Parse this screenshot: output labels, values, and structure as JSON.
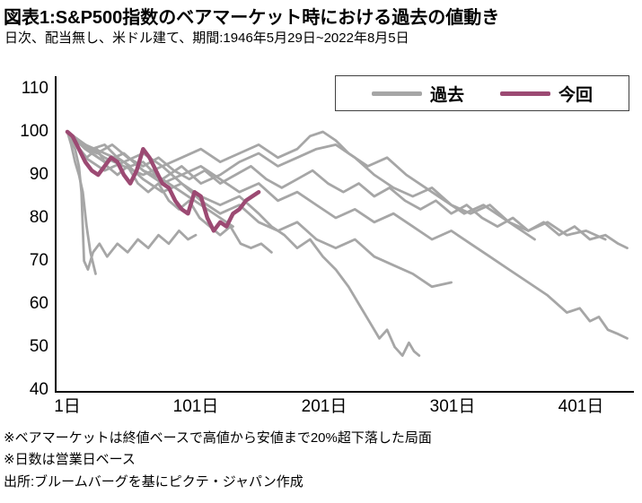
{
  "chart_data": {
    "type": "line",
    "title": "図表1:S&P500指数のベアマーケット時における過去の値動き",
    "subtitle": "日次、配当無し、米ドル建て、期間:1946年5月29日~2022年8月5日",
    "x_axis": {
      "tick_labels": [
        "1日",
        "101日",
        "201日",
        "301日",
        "401日"
      ],
      "tick_values": [
        1,
        101,
        201,
        301,
        401
      ],
      "range": [
        1,
        440
      ],
      "unit": "営業日"
    },
    "y_axis": {
      "ticks": [
        110,
        100,
        90,
        80,
        70,
        60,
        50,
        40
      ],
      "range": [
        40,
        113
      ]
    },
    "grid": false,
    "legend_position": "top-right",
    "legend": [
      {
        "label": "過去",
        "color": "#a6a6a6"
      },
      {
        "label": "今回",
        "color": "#9c4a73"
      }
    ],
    "series": [
      {
        "legend": "過去",
        "x": [
          1,
          15,
          30,
          45,
          60,
          75,
          90,
          105,
          120,
          135,
          150,
          165,
          180,
          195,
          210,
          225,
          240,
          255,
          270,
          285,
          300,
          315,
          330,
          345,
          360,
          375,
          390,
          400,
          408,
          415,
          422,
          430,
          437
        ],
        "y": [
          100,
          96,
          93,
          95,
          91,
          88,
          90,
          92,
          89,
          86,
          88,
          84,
          86,
          83,
          80,
          82,
          79,
          81,
          78,
          75,
          77,
          74,
          71,
          68,
          65,
          62,
          58,
          59,
          56,
          57,
          54,
          53,
          52
        ]
      },
      {
        "legend": "過去",
        "x": [
          1,
          12,
          24,
          36,
          48,
          60,
          72,
          84,
          96,
          108,
          120,
          132,
          144,
          156,
          168,
          180,
          192,
          204,
          216,
          228,
          240,
          252,
          264,
          276,
          288,
          300,
          312,
          324,
          336,
          348,
          360,
          372,
          384,
          396,
          408,
          420,
          430,
          437
        ],
        "y": [
          100,
          97,
          95,
          97,
          94,
          92,
          94,
          91,
          89,
          91,
          88,
          90,
          92,
          89,
          87,
          89,
          91,
          88,
          86,
          88,
          85,
          87,
          84,
          82,
          84,
          81,
          83,
          80,
          78,
          80,
          77,
          79,
          76,
          78,
          75,
          76,
          74,
          73
        ]
      },
      {
        "legend": "過去",
        "x": [
          1,
          15,
          30,
          45,
          60,
          75,
          90,
          105,
          120,
          135,
          150,
          165,
          180,
          195,
          210,
          225,
          240,
          255,
          270,
          285,
          300,
          315,
          330,
          345,
          360,
          375,
          390,
          405,
          420
        ],
        "y": [
          100,
          96,
          93,
          95,
          91,
          89,
          92,
          88,
          90,
          93,
          95,
          92,
          94,
          96,
          97,
          94,
          90,
          87,
          85,
          87,
          83,
          81,
          83,
          79,
          77,
          79,
          76,
          77,
          75
        ]
      },
      {
        "legend": "過去",
        "x": [
          1,
          15,
          30,
          45,
          60,
          75,
          90,
          105,
          120,
          135,
          150,
          160,
          170,
          180,
          190,
          200,
          210,
          220,
          228,
          236,
          244,
          250,
          256,
          262,
          267,
          271,
          275
        ],
        "y": [
          100,
          97,
          94,
          92,
          90,
          92,
          88,
          85,
          83,
          85,
          81,
          78,
          76,
          73,
          75,
          71,
          68,
          64,
          60,
          56,
          52,
          54,
          50,
          48,
          51,
          49,
          48
        ]
      },
      {
        "legend": "過去",
        "x": [
          1,
          15,
          30,
          45,
          60,
          75,
          90,
          105,
          120,
          135,
          150,
          165,
          180,
          195,
          210,
          225,
          240,
          255,
          270,
          285,
          300
        ],
        "y": [
          100,
          94,
          91,
          93,
          89,
          86,
          88,
          84,
          81,
          83,
          79,
          77,
          79,
          75,
          73,
          75,
          71,
          69,
          67,
          64,
          65
        ]
      },
      {
        "legend": "過去",
        "x": [
          1,
          4,
          7,
          10,
          13,
          16,
          19,
          23
        ],
        "y": [
          100,
          97,
          93,
          90,
          86,
          78,
          72,
          67
        ]
      },
      {
        "legend": "過去",
        "x": [
          1,
          4,
          7,
          10,
          12,
          14,
          17,
          21,
          26,
          32,
          40,
          48,
          56,
          64,
          72,
          80,
          88,
          95,
          101
        ],
        "y": [
          100,
          98,
          96,
          92,
          86,
          70,
          68,
          72,
          74,
          71,
          74,
          72,
          75,
          73,
          76,
          74,
          77,
          75,
          76
        ]
      },
      {
        "legend": "過去",
        "x": [
          1,
          8,
          16,
          24,
          32,
          40,
          48,
          56,
          64,
          72,
          80,
          88,
          96,
          104,
          112,
          120,
          128,
          136,
          144,
          152,
          160
        ],
        "y": [
          100,
          97,
          94,
          96,
          92,
          90,
          92,
          88,
          86,
          88,
          84,
          82,
          84,
          80,
          78,
          76,
          78,
          74,
          73,
          74,
          72
        ]
      },
      {
        "legend": "過去",
        "x": [
          1,
          10,
          20,
          30,
          40,
          50,
          60,
          70,
          80,
          90,
          100,
          110,
          120,
          130
        ],
        "y": [
          100,
          98,
          96,
          97,
          94,
          92,
          93,
          90,
          88,
          86,
          84,
          82,
          80,
          78
        ]
      },
      {
        "legend": "過去",
        "x": [
          1,
          15,
          30,
          45,
          60,
          75,
          90,
          105,
          120,
          135,
          150,
          165,
          180,
          190,
          200,
          210,
          220,
          235,
          250,
          265,
          280,
          295,
          310,
          325,
          340,
          355,
          365
        ],
        "y": [
          100,
          97,
          95,
          93,
          95,
          92,
          94,
          96,
          93,
          95,
          97,
          94,
          96,
          99,
          100,
          98,
          95,
          92,
          94,
          90,
          87,
          84,
          81,
          83,
          80,
          77,
          75
        ]
      },
      {
        "legend": "今回",
        "x": [
          1,
          5,
          10,
          15,
          20,
          25,
          30,
          35,
          40,
          45,
          50,
          55,
          60,
          65,
          70,
          75,
          80,
          85,
          90,
          95,
          100,
          105,
          110,
          115,
          120,
          125,
          130,
          135,
          140,
          145,
          150
        ],
        "y": [
          100,
          99,
          96,
          93,
          91,
          90,
          92,
          94,
          93,
          90,
          88,
          91,
          96,
          94,
          91,
          88,
          87,
          84,
          82,
          81,
          86,
          85,
          80,
          77,
          79,
          78,
          81,
          82,
          84,
          85,
          86
        ]
      }
    ],
    "notes": [
      "※ベアマーケットは終値ベースで高値から安値まで20%超下落した局面",
      "※日数は営業日ベース",
      "出所:ブルームバーグを基にピクテ・ジャパン作成"
    ]
  }
}
